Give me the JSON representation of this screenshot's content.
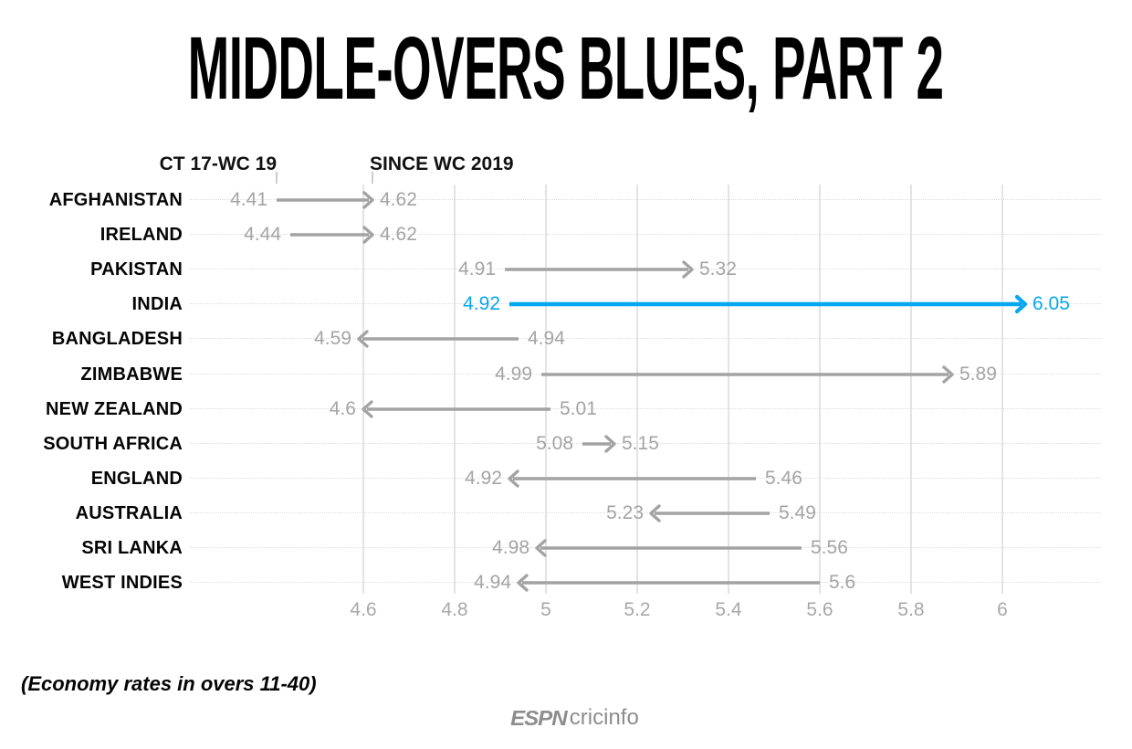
{
  "title": "MIDDLE-OVERS BLUES, PART 2",
  "legend": {
    "before_label": "CT 17-WC 19",
    "after_label": "SINCE WC 2019"
  },
  "footnote": "(Economy rates in overs 11-40)",
  "logo": {
    "espn": "ESPN",
    "cricinfo": "cricinfo"
  },
  "colors": {
    "highlight": "#05a7f0",
    "neutral": "#a3a3a3",
    "gridline": "#e3e3e3",
    "leader_dots": "#dcdcdc",
    "axis_text": "#a8a8a8",
    "team_text": "#050505",
    "logo_gray": "#8d8d8d"
  },
  "chart_data": {
    "type": "arrow",
    "title": "MIDDLE-OVERS BLUES, PART 2",
    "note": "(Economy rates in overs 11-40)",
    "group_labels": [
      "CT 17-WC 19",
      "SINCE WC 2019"
    ],
    "x_axis": {
      "range": [
        4.6,
        6.0
      ],
      "grid": true,
      "ticks": [
        {
          "label": "4.6",
          "value": 4.6
        },
        {
          "label": "4.8",
          "value": 4.8
        },
        {
          "label": "5",
          "value": 5.0
        },
        {
          "label": "5.2",
          "value": 5.2
        },
        {
          "label": "5.4",
          "value": 5.4
        },
        {
          "label": "5.6",
          "value": 5.6
        },
        {
          "label": "5.8",
          "value": 5.8
        },
        {
          "label": "6",
          "value": 6.0
        }
      ]
    },
    "series": [
      {
        "team": "AFGHANISTAN",
        "before": 4.41,
        "after": 4.62,
        "before_label": "4.41",
        "after_label": "4.62",
        "highlight": false
      },
      {
        "team": "IRELAND",
        "before": 4.44,
        "after": 4.62,
        "before_label": "4.44",
        "after_label": "4.62",
        "highlight": false
      },
      {
        "team": "PAKISTAN",
        "before": 4.91,
        "after": 5.32,
        "before_label": "4.91",
        "after_label": "5.32",
        "highlight": false
      },
      {
        "team": "INDIA",
        "before": 4.92,
        "after": 6.05,
        "before_label": "4.92",
        "after_label": "6.05",
        "highlight": true
      },
      {
        "team": "BANGLADESH",
        "before": 4.94,
        "after": 4.59,
        "before_label": "4.94",
        "after_label": "4.59",
        "highlight": false
      },
      {
        "team": "ZIMBABWE",
        "before": 4.99,
        "after": 5.89,
        "before_label": "4.99",
        "after_label": "5.89",
        "highlight": false
      },
      {
        "team": "NEW ZEALAND",
        "before": 5.01,
        "after": 4.6,
        "before_label": "5.01",
        "after_label": "4.6",
        "highlight": false
      },
      {
        "team": "SOUTH AFRICA",
        "before": 5.08,
        "after": 5.15,
        "before_label": "5.08",
        "after_label": "5.15",
        "highlight": false
      },
      {
        "team": "ENGLAND",
        "before": 5.46,
        "after": 4.92,
        "before_label": "5.46",
        "after_label": "4.92",
        "highlight": false
      },
      {
        "team": "AUSTRALIA",
        "before": 5.49,
        "after": 5.23,
        "before_label": "5.49",
        "after_label": "5.23",
        "highlight": false
      },
      {
        "team": "SRI LANKA",
        "before": 5.56,
        "after": 4.98,
        "before_label": "5.56",
        "after_label": "4.98",
        "highlight": false
      },
      {
        "team": "WEST INDIES",
        "before": 5.6,
        "after": 4.94,
        "before_label": "5.6",
        "after_label": "4.94",
        "highlight": false
      }
    ]
  }
}
